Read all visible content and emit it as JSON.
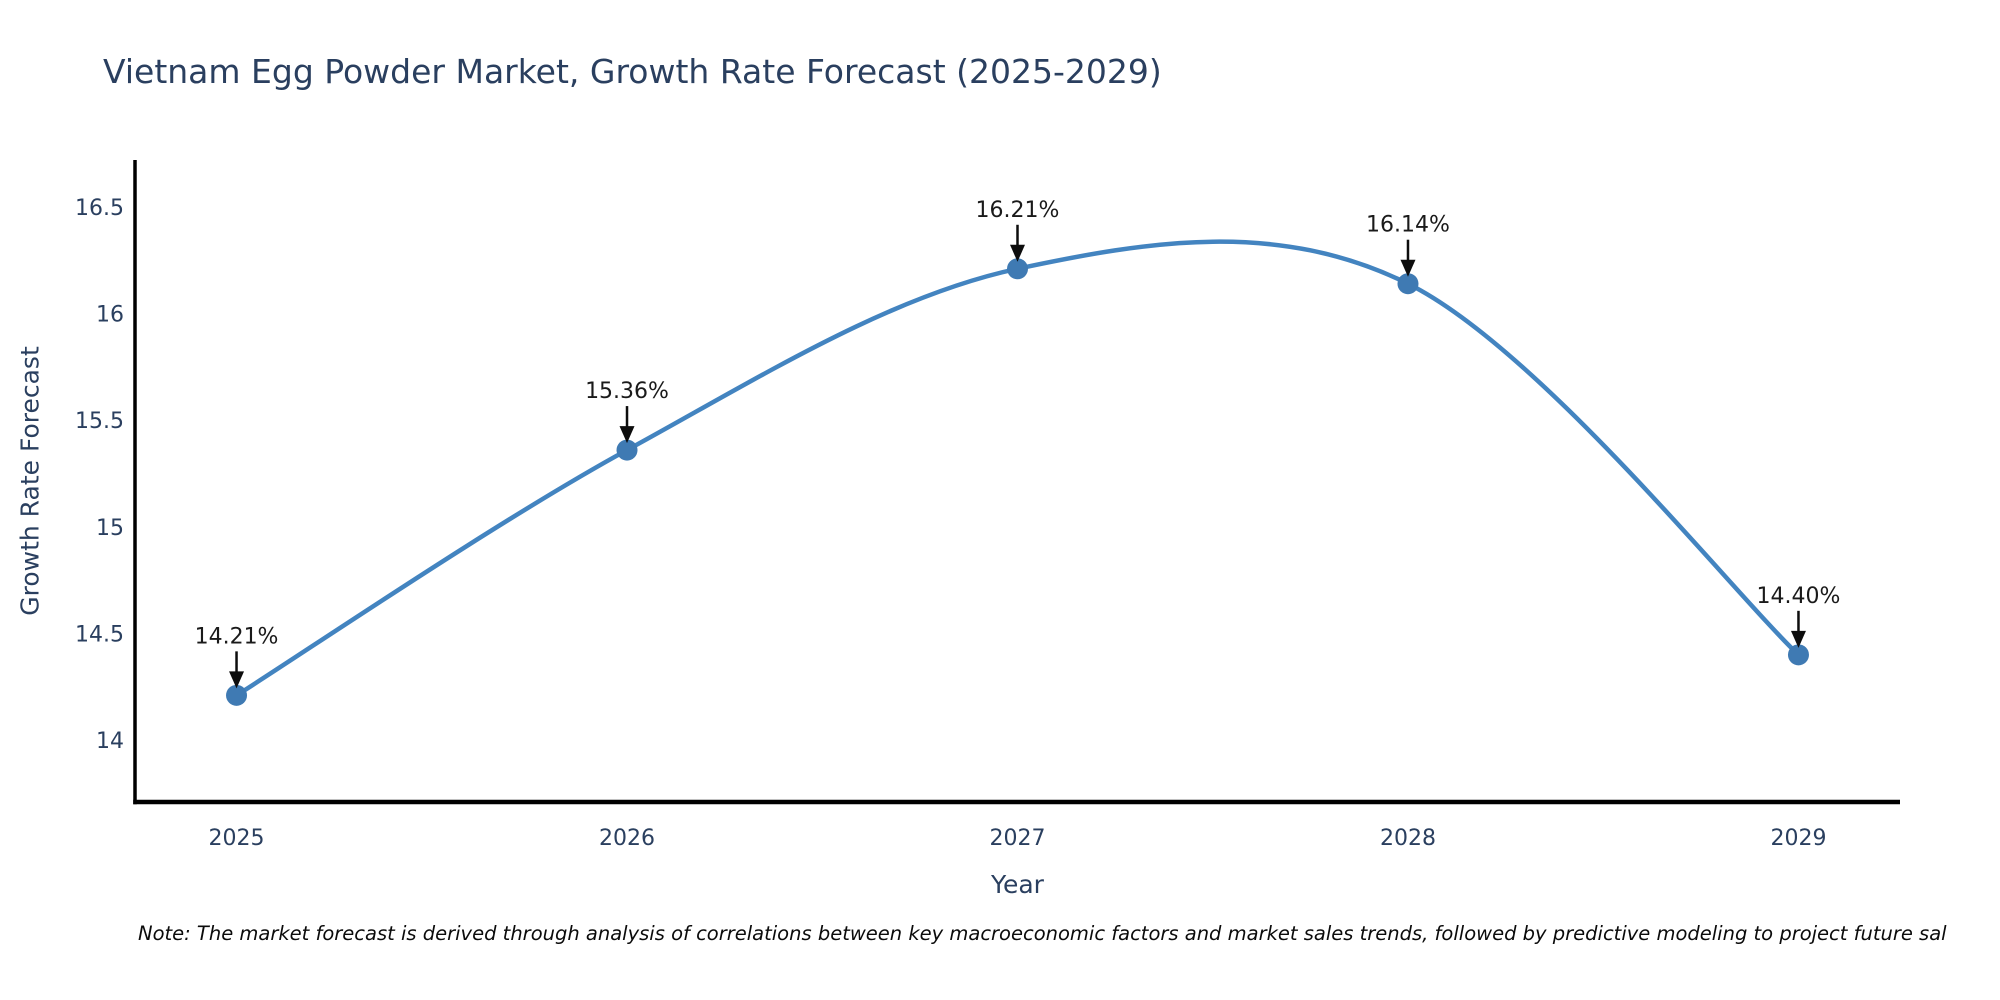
{
  "chart_data": {
    "type": "line",
    "title": "Vietnam Egg Powder Market, Growth Rate Forecast (2025-2029)",
    "x": [
      2025,
      2026,
      2027,
      2028,
      2029
    ],
    "series": [
      {
        "name": "Growth Rate Forecast",
        "values": [
          14.21,
          15.36,
          16.21,
          16.14,
          14.4
        ]
      }
    ],
    "point_labels": [
      "14.21%",
      "15.36%",
      "16.21%",
      "16.14%",
      "14.40%"
    ],
    "xlabel": "Year",
    "ylabel": "Growth Rate Forecast",
    "xticks": {
      "values": [
        2025,
        2026,
        2027,
        2028,
        2029
      ],
      "labels": [
        "2025",
        "2026",
        "2027",
        "2028",
        "2029"
      ]
    },
    "yticks": {
      "values": [
        14,
        14.5,
        15,
        15.5,
        16,
        16.5
      ],
      "labels": [
        "14",
        "14.5",
        "15",
        "15.5",
        "16",
        "16.5"
      ]
    },
    "xlim": [
      2024.74,
      2029.26
    ],
    "ylim": [
      13.71,
      16.72
    ],
    "line_shape": "spline",
    "grid": false,
    "legend": "none",
    "colors": {
      "line": "#4384c0",
      "marker": "#3f7ab3",
      "arrow": "#0d0d0d",
      "annotation_text": "#1a1a1a",
      "axis_text": "#2a3f5f",
      "spine": "#000000",
      "background": "#ffffff"
    }
  },
  "note": {
    "text": "Note: The market forecast is derived through analysis of correlations between key macroeconomic factors and market sales trends, followed by predictive modeling to project future sal"
  }
}
